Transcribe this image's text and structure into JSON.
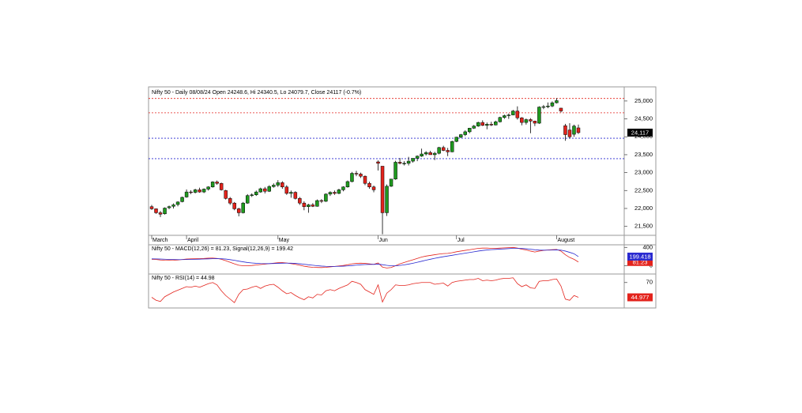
{
  "chart_data": [
    {
      "type": "candlestick",
      "title": "Nifty 50 - Daily 08/08/24 Open 24248.6, Hi 24340.5, Lo 24079.7, Close 24117 (-0.7%)",
      "categories": [
        "March",
        null,
        null,
        null,
        null,
        null,
        null,
        null,
        "April",
        null,
        null,
        null,
        null,
        null,
        null,
        null,
        null,
        null,
        null,
        null,
        null,
        null,
        null,
        null,
        null,
        null,
        null,
        null,
        null,
        "May",
        null,
        null,
        null,
        null,
        null,
        null,
        null,
        null,
        null,
        null,
        null,
        null,
        null,
        null,
        null,
        null,
        null,
        null,
        null,
        null,
        null,
        null,
        "Jun",
        null,
        null,
        null,
        null,
        null,
        null,
        null,
        null,
        null,
        null,
        null,
        null,
        null,
        null,
        null,
        null,
        null,
        "Jul",
        null,
        null,
        null,
        null,
        null,
        null,
        null,
        null,
        null,
        null,
        null,
        null,
        null,
        null,
        null,
        null,
        null,
        null,
        null,
        null,
        null,
        null,
        "August",
        null,
        null,
        null,
        null,
        null
      ],
      "ohlc": [
        [
          22050,
          22100,
          21960,
          21990
        ],
        [
          21990,
          22000,
          21850,
          21880
        ],
        [
          21880,
          21930,
          21760,
          21840
        ],
        [
          21850,
          22030,
          21830,
          22010
        ],
        [
          22020,
          22080,
          21980,
          22050
        ],
        [
          22060,
          22140,
          22000,
          22100
        ],
        [
          22110,
          22200,
          22060,
          22180
        ],
        [
          22190,
          22330,
          22170,
          22310
        ],
        [
          22320,
          22530,
          22300,
          22460
        ],
        [
          22460,
          22510,
          22400,
          22450
        ],
        [
          22450,
          22550,
          22420,
          22520
        ],
        [
          22520,
          22580,
          22440,
          22460
        ],
        [
          22460,
          22560,
          22430,
          22540
        ],
        [
          22540,
          22620,
          22500,
          22600
        ],
        [
          22600,
          22760,
          22580,
          22740
        ],
        [
          22740,
          22780,
          22660,
          22700
        ],
        [
          22700,
          22720,
          22500,
          22520
        ],
        [
          22500,
          22520,
          22250,
          22280
        ],
        [
          22280,
          22320,
          22100,
          22150
        ],
        [
          22150,
          22180,
          21950,
          21990
        ],
        [
          21990,
          22020,
          21780,
          21880
        ],
        [
          21880,
          22180,
          21860,
          22150
        ],
        [
          22150,
          22400,
          22130,
          22360
        ],
        [
          22360,
          22420,
          22320,
          22380
        ],
        [
          22380,
          22500,
          22350,
          22460
        ],
        [
          22460,
          22580,
          22440,
          22550
        ],
        [
          22550,
          22600,
          22420,
          22480
        ],
        [
          22480,
          22650,
          22460,
          22610
        ],
        [
          22610,
          22700,
          22580,
          22650
        ],
        [
          22650,
          22790,
          22600,
          22720
        ],
        [
          22720,
          22760,
          22550,
          22600
        ],
        [
          22600,
          22650,
          22380,
          22420
        ],
        [
          22420,
          22500,
          22300,
          22450
        ],
        [
          22450,
          22480,
          22250,
          22280
        ],
        [
          22280,
          22320,
          22100,
          22150
        ],
        [
          22150,
          22200,
          21950,
          22050
        ],
        [
          22050,
          22130,
          21880,
          22100
        ],
        [
          22100,
          22150,
          22040,
          22060
        ],
        [
          22060,
          22250,
          22050,
          22220
        ],
        [
          22220,
          22260,
          22150,
          22200
        ],
        [
          22200,
          22420,
          22180,
          22400
        ],
        [
          22400,
          22480,
          22350,
          22450
        ],
        [
          22450,
          22500,
          22380,
          22420
        ],
        [
          22420,
          22550,
          22400,
          22520
        ],
        [
          22520,
          22620,
          22480,
          22600
        ],
        [
          22600,
          22780,
          22580,
          22750
        ],
        [
          22750,
          23020,
          22730,
          22980
        ],
        [
          22980,
          23050,
          22900,
          22960
        ],
        [
          22960,
          23000,
          22850,
          22900
        ],
        [
          22900,
          22920,
          22650,
          22700
        ],
        [
          22700,
          22750,
          22550,
          22600
        ],
        [
          22600,
          22640,
          22450,
          22520
        ],
        [
          23300,
          23340,
          23060,
          23260
        ],
        [
          23180,
          23180,
          21280,
          21880
        ],
        [
          21880,
          22670,
          21790,
          22620
        ],
        [
          22620,
          22820,
          22600,
          22820
        ],
        [
          22820,
          23330,
          22800,
          23290
        ],
        [
          23290,
          23410,
          23230,
          23260
        ],
        [
          23260,
          23320,
          23200,
          23260
        ],
        [
          23260,
          23440,
          23200,
          23320
        ],
        [
          23320,
          23400,
          23280,
          23400
        ],
        [
          23400,
          23480,
          23320,
          23460
        ],
        [
          23460,
          23670,
          23440,
          23520
        ],
        [
          23520,
          23600,
          23480,
          23560
        ],
        [
          23560,
          23610,
          23500,
          23500
        ],
        [
          23500,
          23580,
          23350,
          23540
        ],
        [
          23540,
          23720,
          23510,
          23700
        ],
        [
          23700,
          23750,
          23600,
          23620
        ],
        [
          23620,
          23690,
          23460,
          23580
        ],
        [
          23580,
          23890,
          23570,
          23870
        ],
        [
          23870,
          24000,
          23850,
          23990
        ],
        [
          23990,
          24080,
          23960,
          24060
        ],
        [
          24060,
          24180,
          24020,
          24140
        ],
        [
          24140,
          24250,
          24100,
          24240
        ],
        [
          24240,
          24330,
          24220,
          24300
        ],
        [
          24300,
          24420,
          24280,
          24400
        ],
        [
          24400,
          24460,
          24300,
          24320
        ],
        [
          24320,
          24400,
          24210,
          24350
        ],
        [
          24350,
          24420,
          24300,
          24330
        ],
        [
          24330,
          24450,
          24320,
          24420
        ],
        [
          24420,
          24560,
          24400,
          24540
        ],
        [
          24540,
          24620,
          24500,
          24590
        ],
        [
          24590,
          24650,
          24500,
          24610
        ],
        [
          24610,
          24750,
          24600,
          24720
        ],
        [
          24720,
          24850,
          24480,
          24530
        ],
        [
          24530,
          24550,
          24320,
          24400
        ],
        [
          24400,
          24510,
          24340,
          24480
        ],
        [
          24480,
          24520,
          24100,
          24440
        ],
        [
          24440,
          24450,
          24300,
          24380
        ],
        [
          24380,
          24850,
          24360,
          24830
        ],
        [
          24830,
          24890,
          24770,
          24840
        ],
        [
          24840,
          24960,
          24800,
          24860
        ],
        [
          24860,
          24990,
          24830,
          24950
        ],
        [
          24950,
          25080,
          24930,
          25010
        ],
        [
          24800,
          24810,
          24680,
          24720
        ],
        [
          24310,
          24360,
          23890,
          24060
        ],
        [
          24190,
          24380,
          23950,
          24000
        ],
        [
          24070,
          24340,
          24000,
          24300
        ],
        [
          24248.6,
          24340.5,
          24079.7,
          24117
        ]
      ],
      "up_color": "#1f9a1f",
      "down_color": "#e3231c",
      "ylim": [
        21250,
        25350
      ],
      "yticks": [
        {
          "value": 21500,
          "label": "21,500"
        },
        {
          "value": 22000,
          "label": "22,000"
        },
        {
          "value": 22500,
          "label": "22,500"
        },
        {
          "value": 23000,
          "label": "23,000"
        },
        {
          "value": 23500,
          "label": "23,500"
        },
        {
          "value": 24000,
          "label": "24,000"
        },
        {
          "value": 24500,
          "label": "24,500"
        },
        {
          "value": 25000,
          "label": "25,000"
        }
      ],
      "hlines": [
        {
          "value": 25070,
          "color": "#e3231c"
        },
        {
          "value": 24670,
          "color": "#e3231c"
        },
        {
          "value": 23960,
          "color": "#2a2ad0"
        },
        {
          "value": 23390,
          "color": "#2a2ad0"
        }
      ],
      "last_label": {
        "value": 24117,
        "label": "24,117",
        "color": "#000000"
      }
    },
    {
      "type": "line",
      "title": "Nifty 50 - MACD(12,26) = 81.23, Signal(12,26,9) = 199.42",
      "series": [
        {
          "color": "#e3231c",
          "values": [
            140,
            135,
            125,
            120,
            118,
            120,
            125,
            135,
            145,
            150,
            152,
            155,
            158,
            165,
            168,
            160,
            140,
            110,
            75,
            40,
            10,
            0,
            0,
            5,
            15,
            25,
            35,
            45,
            55,
            65,
            68,
            60,
            45,
            30,
            10,
            -10,
            -25,
            -35,
            -38,
            -40,
            -35,
            -25,
            -15,
            -5,
            5,
            20,
            40,
            50,
            55,
            50,
            40,
            30,
            60,
            -30,
            -50,
            -40,
            0,
            40,
            70,
            100,
            130,
            160,
            190,
            210,
            225,
            240,
            255,
            265,
            270,
            285,
            305,
            320,
            335,
            350,
            365,
            380,
            385,
            385,
            380,
            380,
            385,
            390,
            395,
            400,
            385,
            360,
            345,
            320,
            300,
            320,
            335,
            345,
            350,
            355,
            320,
            240,
            180,
            140,
            81.23
          ],
          "last_label": "81.23"
        },
        {
          "color": "#2a2ad0",
          "values": [
            150,
            148,
            145,
            142,
            138,
            135,
            133,
            133,
            135,
            138,
            140,
            143,
            146,
            150,
            153,
            155,
            152,
            145,
            132,
            118,
            100,
            85,
            70,
            60,
            52,
            47,
            45,
            46,
            48,
            52,
            55,
            56,
            55,
            50,
            42,
            32,
            20,
            10,
            0,
            -8,
            -14,
            -16,
            -16,
            -14,
            -10,
            -5,
            3,
            12,
            20,
            26,
            29,
            29,
            35,
            22,
            8,
            -2,
            -2,
            6,
            19,
            35,
            54,
            75,
            98,
            120,
            141,
            161,
            180,
            197,
            212,
            227,
            243,
            258,
            274,
            289,
            304,
            320,
            333,
            344,
            351,
            357,
            363,
            368,
            374,
            379,
            380,
            376,
            370,
            360,
            348,
            342,
            340,
            341,
            343,
            346,
            340,
            320,
            292,
            262,
            199.42
          ],
          "last_label": "199.418"
        }
      ],
      "ylim": [
        -130,
        440
      ],
      "yticks": [
        0,
        400
      ]
    },
    {
      "type": "line",
      "title": "Nifty 50 - RSI(14) = 44.98",
      "series": [
        {
          "color": "#e3231c",
          "values": [
            45,
            40,
            38,
            46,
            50,
            54,
            57,
            60,
            63,
            62,
            64,
            62,
            65,
            68,
            70,
            66,
            56,
            48,
            42,
            36,
            50,
            58,
            59,
            62,
            64,
            60,
            64,
            66,
            67,
            62,
            56,
            51,
            53,
            48,
            44,
            41,
            46,
            44,
            50,
            49,
            56,
            58,
            56,
            60,
            63,
            66,
            72,
            70,
            67,
            58,
            54,
            50,
            66,
            37,
            52,
            58,
            66,
            65,
            65,
            66,
            68,
            69,
            70,
            70,
            70,
            67,
            68,
            69,
            64,
            70,
            72,
            73,
            74,
            75,
            75,
            77,
            73,
            74,
            73,
            74,
            76,
            77,
            77,
            78,
            68,
            63,
            66,
            61,
            60,
            72,
            73,
            73,
            75,
            76,
            64,
            42,
            40,
            48,
            44.98
          ],
          "last_label": "44.977"
        }
      ],
      "ylim": [
        27,
        83
      ],
      "yticks": [
        70
      ]
    }
  ]
}
